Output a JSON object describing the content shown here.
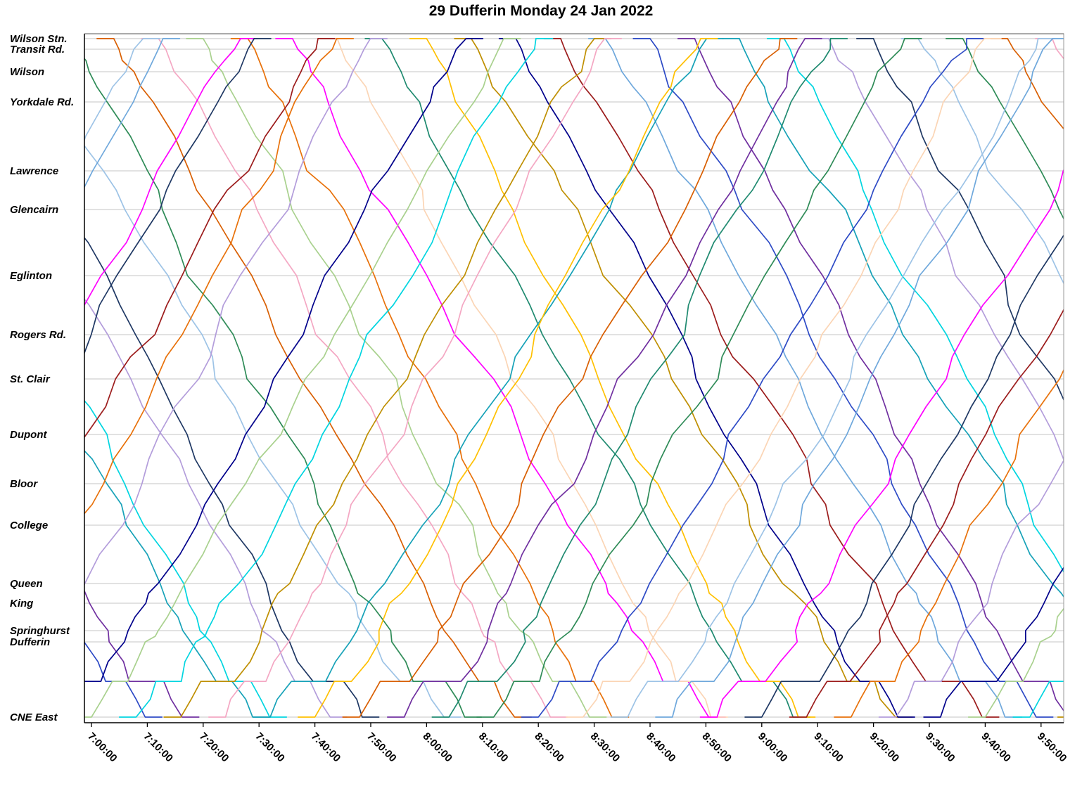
{
  "title": "29 Dufferin Monday 24 Jan 2022",
  "chart_data": {
    "type": "line",
    "subtype": "time-distance-string-chart",
    "title": "29 Dufferin Monday 24 Jan 2022",
    "xlabel": "",
    "ylabel": "",
    "grid": "horizontal",
    "legend": "none",
    "x_range": [
      "7:00:00",
      "9:57:00"
    ],
    "x_ticks": [
      "7:00:00",
      "7:10:00",
      "7:20:00",
      "7:30:00",
      "7:40:00",
      "7:50:00",
      "8:00:00",
      "8:10:00",
      "8:20:00",
      "8:30:00",
      "8:40:00",
      "8:50:00",
      "9:00:00",
      "9:10:00",
      "9:20:00",
      "9:30:00",
      "9:40:00",
      "9:50:00"
    ],
    "stations": [
      {
        "name": "Wilson Stn.",
        "pos": 0.007
      },
      {
        "name": "Transit Rd.",
        "pos": 0.0224
      },
      {
        "name": "Wilson",
        "pos": 0.0551
      },
      {
        "name": "Yorkdale Rd.",
        "pos": 0.099
      },
      {
        "name": "Lawrence",
        "pos": 0.199
      },
      {
        "name": "Glencairn",
        "pos": 0.2551
      },
      {
        "name": "Eglinton",
        "pos": 0.351
      },
      {
        "name": "Rogers Rd.",
        "pos": 0.4367
      },
      {
        "name": "St. Clair",
        "pos": 0.501
      },
      {
        "name": "Dupont",
        "pos": 0.5816
      },
      {
        "name": "Bloor",
        "pos": 0.6531
      },
      {
        "name": "College",
        "pos": 0.7133
      },
      {
        "name": "Queen",
        "pos": 0.798
      },
      {
        "name": "King",
        "pos": 0.8265
      },
      {
        "name": "Springhurst",
        "pos": 0.8663
      },
      {
        "name": "Dufferin",
        "pos": 0.8827
      },
      {
        "name": "CNE East",
        "pos": 0.9918
      }
    ],
    "palette": [
      "#E8710A",
      "#1F8A70",
      "#00008B",
      "#2E4BC6",
      "#00D5E0",
      "#9DC3E6",
      "#F4A7C3",
      "#FF00FF",
      "#FFC000",
      "#9C1C1C",
      "#7030A0",
      "#B39DDB",
      "#2E8B57",
      "#A9D18E",
      "#FBD5B5",
      "#BF8F00",
      "#6FA8DC",
      "#17A2B8",
      "#1F3864",
      "#D95F02"
    ],
    "trip_format": [
      "color_index",
      "direction(S=Wilson->CNE, N=CNE->Wilson)",
      "start_min_after_7:00",
      "run_duration_min"
    ],
    "trips": [
      [
        3,
        "S",
        -60,
        66
      ],
      [
        10,
        "S",
        -52,
        62
      ],
      [
        17,
        "S",
        -44,
        70
      ],
      [
        4,
        "S",
        -36,
        64
      ],
      [
        11,
        "S",
        -28,
        68
      ],
      [
        18,
        "S",
        -20,
        63
      ],
      [
        5,
        "S",
        -12,
        71
      ],
      [
        12,
        "S",
        -4,
        65
      ],
      [
        19,
        "S",
        4,
        69
      ],
      [
        6,
        "S",
        12,
        67
      ],
      [
        13,
        "S",
        20,
        66
      ],
      [
        0,
        "S",
        28,
        62
      ],
      [
        7,
        "S",
        36,
        70
      ],
      [
        14,
        "S",
        44,
        64
      ],
      [
        1,
        "S",
        52,
        68
      ],
      [
        8,
        "S",
        60,
        63
      ],
      [
        15,
        "S",
        68,
        71
      ],
      [
        2,
        "S",
        76,
        65
      ],
      [
        9,
        "S",
        84,
        69
      ],
      [
        16,
        "S",
        92,
        67
      ],
      [
        3,
        "S",
        100,
        66
      ],
      [
        10,
        "S",
        108,
        62
      ],
      [
        17,
        "S",
        116,
        70
      ],
      [
        4,
        "S",
        124,
        64
      ],
      [
        11,
        "S",
        132,
        68
      ],
      [
        18,
        "S",
        140,
        63
      ],
      [
        5,
        "S",
        148,
        71
      ],
      [
        12,
        "S",
        156,
        65
      ],
      [
        19,
        "S",
        164,
        69
      ],
      [
        6,
        "S",
        172,
        67
      ],
      [
        5,
        "N",
        -64,
        68
      ],
      [
        16,
        "N",
        -56,
        64
      ],
      [
        7,
        "N",
        -48,
        72
      ],
      [
        18,
        "N",
        -40,
        66
      ],
      [
        9,
        "N",
        -32,
        70
      ],
      [
        0,
        "N",
        -24,
        65
      ],
      [
        11,
        "N",
        -16,
        63
      ],
      [
        2,
        "N",
        -8,
        69
      ],
      [
        13,
        "N",
        0,
        71
      ],
      [
        4,
        "N",
        8,
        67
      ],
      [
        15,
        "N",
        16,
        68
      ],
      [
        6,
        "N",
        24,
        64
      ],
      [
        17,
        "N",
        32,
        72
      ],
      [
        8,
        "N",
        40,
        66
      ],
      [
        19,
        "N",
        48,
        70
      ],
      [
        10,
        "N",
        56,
        65
      ],
      [
        1,
        "N",
        64,
        63
      ],
      [
        12,
        "N",
        72,
        69
      ],
      [
        3,
        "N",
        80,
        71
      ],
      [
        14,
        "N",
        88,
        67
      ],
      [
        5,
        "N",
        96,
        68
      ],
      [
        16,
        "N",
        104,
        64
      ],
      [
        7,
        "N",
        112,
        72
      ],
      [
        18,
        "N",
        120,
        66
      ],
      [
        9,
        "N",
        128,
        70
      ],
      [
        0,
        "N",
        136,
        65
      ],
      [
        11,
        "N",
        144,
        63
      ],
      [
        2,
        "N",
        152,
        69
      ],
      [
        13,
        "N",
        160,
        71
      ],
      [
        4,
        "N",
        168,
        67
      ],
      [
        15,
        "N",
        176,
        68
      ]
    ]
  }
}
